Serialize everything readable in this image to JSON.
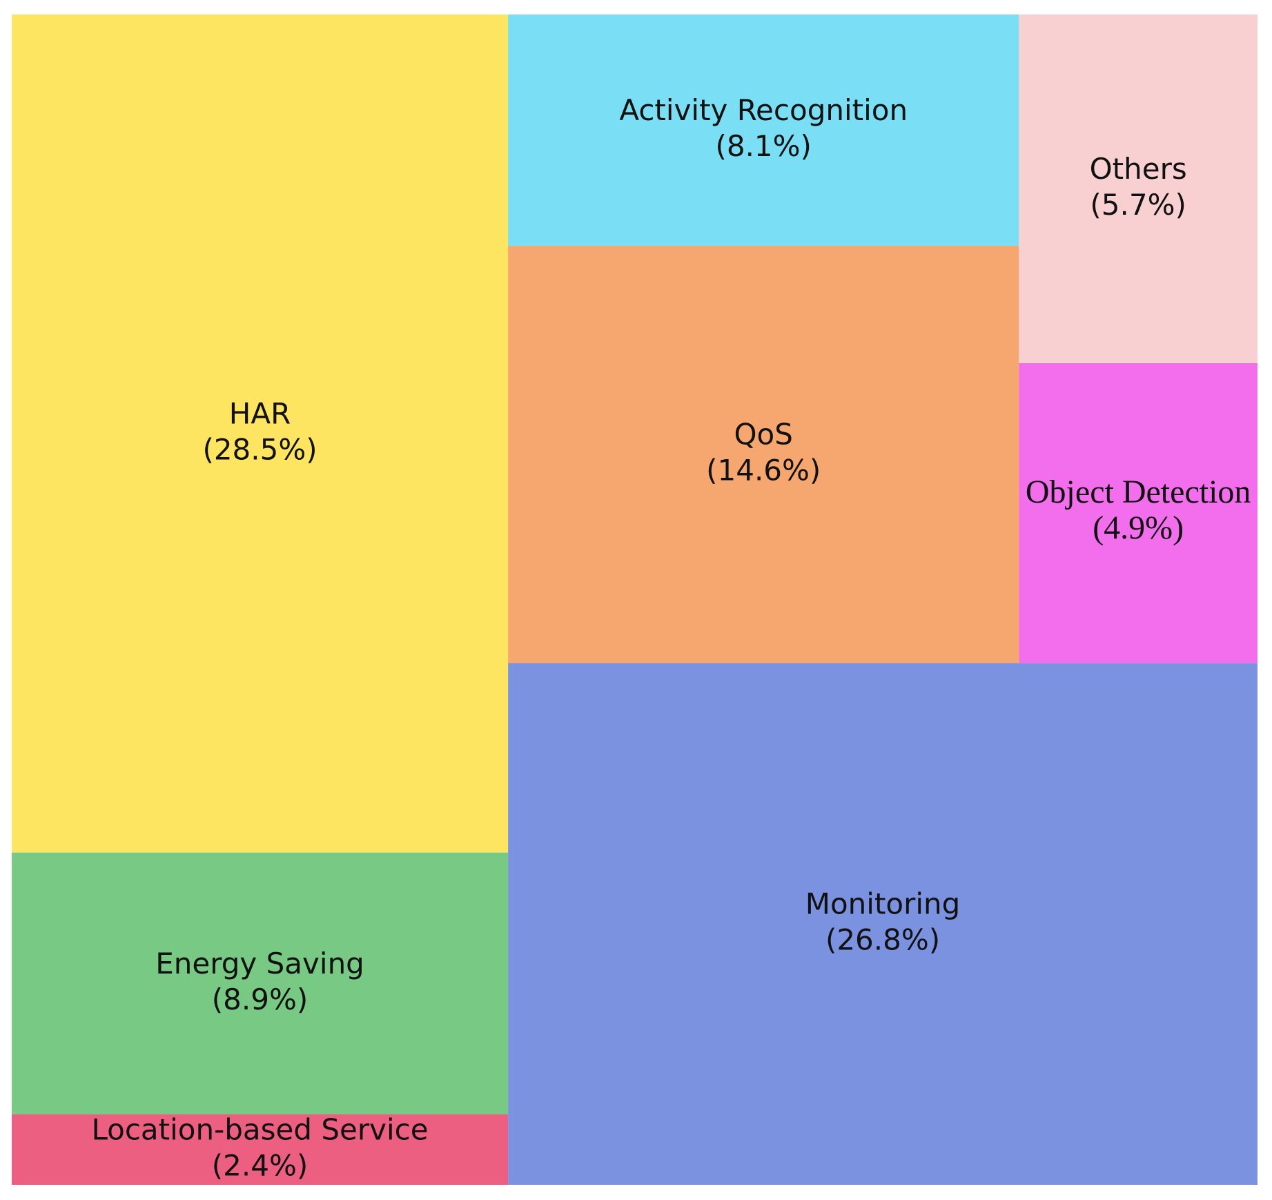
{
  "chart_data": {
    "type": "treemap",
    "categories": [
      "HAR",
      "Energy Saving",
      "Location-based Service",
      "Activity Recognition",
      "QoS",
      "Others",
      "Object Detection",
      "Monitoring"
    ],
    "values": [
      28.5,
      8.9,
      2.4,
      8.1,
      14.6,
      5.7,
      4.9,
      26.8
    ],
    "value_labels": [
      "(28.5%)",
      "(8.9%)",
      "(2.4%)",
      "(8.1%)",
      "(14.6%)",
      "(5.7%)",
      "(4.9%)",
      "(26.8%)"
    ],
    "colors": [
      "#fee561",
      "#78c983",
      "#ec5f80",
      "#7adff5",
      "#f6a66f",
      "#f9d0d2",
      "#f36eec",
      "#7b92e1"
    ]
  }
}
